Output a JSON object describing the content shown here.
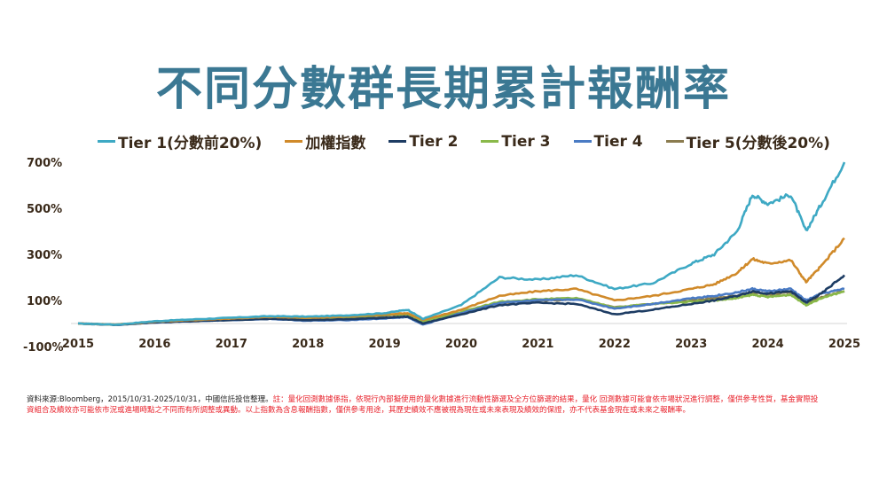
{
  "title": "不同分數群長期累計報酬率",
  "legend": [
    {
      "label": "Tier 1(分數前20%)",
      "color": "#3ea9c4"
    },
    {
      "label": "加權指數",
      "color": "#d08a2a"
    },
    {
      "label": "Tier 2",
      "color": "#1d3c63"
    },
    {
      "label": "Tier 3",
      "color": "#8ab94a"
    },
    {
      "label": "Tier 4",
      "color": "#4a7bc4"
    },
    {
      "label": "Tier 5(分數後20%)",
      "color": "#8b7c4f"
    }
  ],
  "footnote": {
    "source": "資料來源:Bloomberg，2015/10/31-2025/10/31，中國信託投信整理。",
    "note": "註：量化回測數據係指，依現行內部擬使用的量化數據進行流動性篩選及全方位篩選的結果，量化 回測數據可能會依市場狀況進行調整，僅供參考性質，基金實際投資組合及績效亦可能依市況或進場時點之不同而有所調整或異動。以上指數為含息報酬指數，僅供參考用途，其歷史績效不應被視為現在或未來表現及績效的保證，亦不代表基金現在或未來之報酬率。"
  },
  "chart_data": {
    "type": "line",
    "title": "不同分數群長期累計報酬率",
    "xlabel": "",
    "ylabel": "",
    "ylim": [
      -100,
      700
    ],
    "yticks": [
      "700%",
      "500%",
      "300%",
      "100%",
      "-100%"
    ],
    "ytick_values": [
      700,
      500,
      300,
      100,
      -100
    ],
    "xticks": [
      "2015",
      "2016",
      "2017",
      "2018",
      "2019",
      "2020",
      "2021",
      "2022",
      "2023",
      "2024",
      "2025"
    ],
    "grid": false,
    "legend_position": "top",
    "x": [
      2015.0,
      2015.5,
      2016.0,
      2016.5,
      2017.0,
      2017.5,
      2018.0,
      2018.5,
      2019.0,
      2019.3,
      2019.5,
      2020.0,
      2020.5,
      2021.0,
      2021.5,
      2022.0,
      2022.5,
      2023.0,
      2023.3,
      2023.6,
      2023.8,
      2024.0,
      2024.3,
      2024.5,
      2024.7,
      2025.0
    ],
    "series": [
      {
        "name": "Tier 1(分數前20%)",
        "color": "#3ea9c4",
        "values": [
          0,
          -5,
          10,
          18,
          25,
          32,
          30,
          35,
          45,
          60,
          20,
          80,
          200,
          190,
          210,
          150,
          175,
          260,
          300,
          400,
          560,
          520,
          560,
          400,
          520,
          700
        ]
      },
      {
        "name": "加權指數",
        "color": "#d08a2a",
        "values": [
          0,
          -5,
          8,
          15,
          22,
          28,
          25,
          30,
          40,
          45,
          15,
          60,
          120,
          140,
          150,
          100,
          120,
          150,
          170,
          220,
          280,
          260,
          275,
          180,
          250,
          370
        ]
      },
      {
        "name": "Tier 2",
        "color": "#1d3c63",
        "values": [
          0,
          -6,
          5,
          10,
          15,
          20,
          15,
          18,
          25,
          30,
          0,
          40,
          80,
          90,
          85,
          40,
          60,
          85,
          100,
          120,
          140,
          130,
          140,
          90,
          130,
          210
        ]
      },
      {
        "name": "Tier 3",
        "color": "#8ab94a",
        "values": [
          0,
          -5,
          7,
          13,
          20,
          25,
          22,
          28,
          38,
          40,
          10,
          50,
          95,
          105,
          110,
          70,
          85,
          95,
          100,
          110,
          125,
          115,
          125,
          80,
          110,
          140
        ]
      },
      {
        "name": "Tier 4",
        "color": "#4a7bc4",
        "values": [
          0,
          -6,
          5,
          10,
          15,
          20,
          12,
          15,
          22,
          28,
          -5,
          45,
          90,
          100,
          105,
          65,
          85,
          110,
          120,
          135,
          150,
          140,
          150,
          100,
          130,
          150
        ]
      },
      {
        "name": "Tier 5(分數後20%)",
        "color": "#8b7c4f",
        "values": [
          0,
          -5,
          7,
          13,
          20,
          26,
          22,
          26,
          35,
          40,
          10,
          48,
          90,
          100,
          105,
          70,
          85,
          100,
          110,
          120,
          135,
          125,
          135,
          90,
          115,
          140
        ]
      }
    ]
  }
}
